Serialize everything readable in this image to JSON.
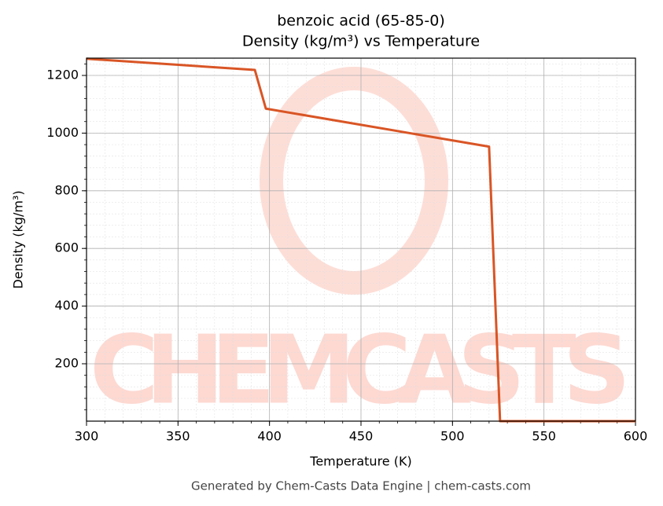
{
  "chart_data": {
    "type": "line",
    "title": "benzoic acid (65-85-0)",
    "subtitle": "Density (kg/m³) vs Temperature",
    "x_label": "Temperature (K)",
    "y_label": "Density (kg/m³)",
    "footer": "Generated by Chem-Casts Data Engine | chem-casts.com",
    "watermark": "CHEMCASTS",
    "x": [
      300,
      392,
      398,
      520,
      526,
      600
    ],
    "series": [
      {
        "name": "Density",
        "color": "#d95525",
        "values": [
          1258,
          1219,
          1085,
          953,
          1,
          1
        ]
      }
    ],
    "xlim": [
      300,
      600
    ],
    "ylim": [
      1,
      1260
    ],
    "xticks": [
      300,
      350,
      400,
      450,
      500,
      550,
      600
    ],
    "yticks": [
      200,
      400,
      600,
      800,
      1000,
      1200
    ],
    "grid": true
  }
}
